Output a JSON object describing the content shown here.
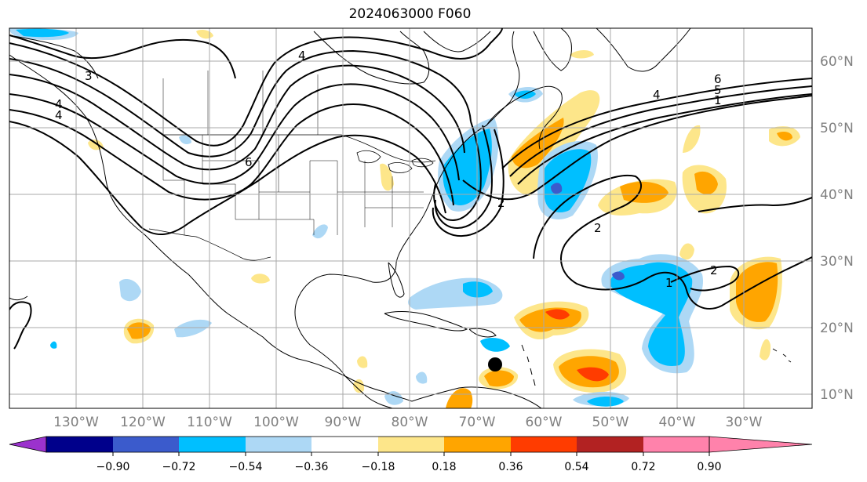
{
  "title": "2024063000 F060",
  "lat_ticks": [
    "10°N",
    "20°N",
    "30°N",
    "40°N",
    "50°N",
    "60°N"
  ],
  "lon_ticks": [
    "130°W",
    "120°W",
    "110°W",
    "100°W",
    "90°W",
    "80°W",
    "70°W",
    "60°W",
    "50°W",
    "40°W",
    "30°W"
  ],
  "colorbar": {
    "ticks": [
      "−0.90",
      "−0.72",
      "−0.54",
      "−0.36",
      "−0.18",
      "0.18",
      "0.36",
      "0.54",
      "0.72",
      "0.90"
    ],
    "colors": [
      "#9b32cd",
      "#00008b",
      "#3b5bcc",
      "#00bfff",
      "#add8f5",
      "#ffffff",
      "#fde68a",
      "#ffa500",
      "#ff3c00",
      "#b22222",
      "#ff82ab"
    ]
  },
  "contour_labels": [
    "6",
    "5",
    "4",
    "1",
    "2",
    "2",
    "1",
    "2",
    "4",
    "3",
    "4",
    "6",
    "4"
  ],
  "colors": {
    "contour": "#000000",
    "coast": "#000000",
    "grid": "#a9a9a9",
    "marker": "#000000"
  }
}
